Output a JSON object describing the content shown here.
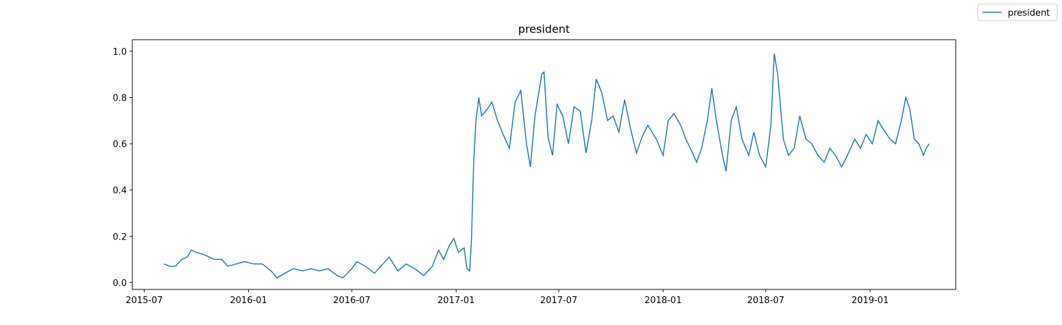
{
  "chart_data": {
    "type": "line",
    "title": "president",
    "xlabel": "",
    "ylabel": "",
    "x_tick_labels": [
      "2015-07",
      "2016-01",
      "2016-07",
      "2017-01",
      "2017-07",
      "2018-01",
      "2018-07",
      "2019-01"
    ],
    "y_tick_labels": [
      "0.0",
      "0.2",
      "0.4",
      "0.6",
      "0.8",
      "1.0"
    ],
    "xlim": [
      "2015-06-10",
      "2019-06-01"
    ],
    "ylim": [
      -0.03,
      1.05
    ],
    "grid": false,
    "legend": {
      "position": "top-right",
      "entries": [
        "president"
      ]
    },
    "series": [
      {
        "name": "president",
        "color": "#1f77b4",
        "points": [
          [
            "2015-08-05",
            0.08
          ],
          [
            "2015-08-15",
            0.07
          ],
          [
            "2015-08-25",
            0.07
          ],
          [
            "2015-09-05",
            0.1
          ],
          [
            "2015-09-15",
            0.11
          ],
          [
            "2015-09-22",
            0.14
          ],
          [
            "2015-10-01",
            0.13
          ],
          [
            "2015-10-15",
            0.12
          ],
          [
            "2015-11-01",
            0.1
          ],
          [
            "2015-11-15",
            0.1
          ],
          [
            "2015-11-25",
            0.07
          ],
          [
            "2015-12-10",
            0.08
          ],
          [
            "2015-12-25",
            0.09
          ],
          [
            "2016-01-10",
            0.08
          ],
          [
            "2016-01-25",
            0.08
          ],
          [
            "2016-02-10",
            0.05
          ],
          [
            "2016-02-20",
            0.02
          ],
          [
            "2016-03-05",
            0.04
          ],
          [
            "2016-03-20",
            0.06
          ],
          [
            "2016-04-05",
            0.05
          ],
          [
            "2016-04-20",
            0.06
          ],
          [
            "2016-05-05",
            0.05
          ],
          [
            "2016-05-20",
            0.06
          ],
          [
            "2016-06-05",
            0.03
          ],
          [
            "2016-06-15",
            0.02
          ],
          [
            "2016-07-01",
            0.06
          ],
          [
            "2016-07-10",
            0.09
          ],
          [
            "2016-07-25",
            0.07
          ],
          [
            "2016-08-10",
            0.04
          ],
          [
            "2016-08-25",
            0.08
          ],
          [
            "2016-09-05",
            0.11
          ],
          [
            "2016-09-20",
            0.05
          ],
          [
            "2016-10-05",
            0.08
          ],
          [
            "2016-10-20",
            0.06
          ],
          [
            "2016-11-05",
            0.03
          ],
          [
            "2016-11-20",
            0.07
          ],
          [
            "2016-12-01",
            0.14
          ],
          [
            "2016-12-10",
            0.1
          ],
          [
            "2016-12-20",
            0.16
          ],
          [
            "2016-12-28",
            0.19
          ],
          [
            "2017-01-05",
            0.13
          ],
          [
            "2017-01-15",
            0.15
          ],
          [
            "2017-01-20",
            0.06
          ],
          [
            "2017-01-25",
            0.05
          ],
          [
            "2017-01-28",
            0.18
          ],
          [
            "2017-02-01",
            0.52
          ],
          [
            "2017-02-05",
            0.7
          ],
          [
            "2017-02-10",
            0.8
          ],
          [
            "2017-02-15",
            0.72
          ],
          [
            "2017-02-25",
            0.75
          ],
          [
            "2017-03-05",
            0.78
          ],
          [
            "2017-03-15",
            0.7
          ],
          [
            "2017-03-25",
            0.64
          ],
          [
            "2017-04-05",
            0.58
          ],
          [
            "2017-04-15",
            0.78
          ],
          [
            "2017-04-25",
            0.83
          ],
          [
            "2017-05-05",
            0.6
          ],
          [
            "2017-05-12",
            0.5
          ],
          [
            "2017-05-20",
            0.72
          ],
          [
            "2017-06-01",
            0.9
          ],
          [
            "2017-06-05",
            0.91
          ],
          [
            "2017-06-12",
            0.63
          ],
          [
            "2017-06-20",
            0.55
          ],
          [
            "2017-06-28",
            0.77
          ],
          [
            "2017-07-08",
            0.72
          ],
          [
            "2017-07-18",
            0.6
          ],
          [
            "2017-07-28",
            0.76
          ],
          [
            "2017-08-08",
            0.74
          ],
          [
            "2017-08-18",
            0.56
          ],
          [
            "2017-08-28",
            0.7
          ],
          [
            "2017-09-05",
            0.88
          ],
          [
            "2017-09-15",
            0.82
          ],
          [
            "2017-09-25",
            0.7
          ],
          [
            "2017-10-05",
            0.72
          ],
          [
            "2017-10-15",
            0.65
          ],
          [
            "2017-10-25",
            0.79
          ],
          [
            "2017-11-05",
            0.66
          ],
          [
            "2017-11-15",
            0.56
          ],
          [
            "2017-11-25",
            0.63
          ],
          [
            "2017-12-05",
            0.68
          ],
          [
            "2017-12-20",
            0.62
          ],
          [
            "2018-01-01",
            0.55
          ],
          [
            "2018-01-10",
            0.7
          ],
          [
            "2018-01-20",
            0.73
          ],
          [
            "2018-02-01",
            0.68
          ],
          [
            "2018-02-10",
            0.62
          ],
          [
            "2018-02-20",
            0.57
          ],
          [
            "2018-03-01",
            0.52
          ],
          [
            "2018-03-10",
            0.58
          ],
          [
            "2018-03-20",
            0.7
          ],
          [
            "2018-03-28",
            0.84
          ],
          [
            "2018-04-05",
            0.7
          ],
          [
            "2018-04-15",
            0.56
          ],
          [
            "2018-04-22",
            0.48
          ],
          [
            "2018-05-01",
            0.7
          ],
          [
            "2018-05-10",
            0.76
          ],
          [
            "2018-05-20",
            0.62
          ],
          [
            "2018-06-01",
            0.55
          ],
          [
            "2018-06-10",
            0.65
          ],
          [
            "2018-06-20",
            0.55
          ],
          [
            "2018-07-01",
            0.5
          ],
          [
            "2018-07-10",
            0.68
          ],
          [
            "2018-07-16",
            0.99
          ],
          [
            "2018-07-22",
            0.9
          ],
          [
            "2018-08-01",
            0.62
          ],
          [
            "2018-08-10",
            0.55
          ],
          [
            "2018-08-20",
            0.58
          ],
          [
            "2018-08-30",
            0.72
          ],
          [
            "2018-09-10",
            0.62
          ],
          [
            "2018-09-20",
            0.6
          ],
          [
            "2018-10-01",
            0.55
          ],
          [
            "2018-10-12",
            0.52
          ],
          [
            "2018-10-22",
            0.58
          ],
          [
            "2018-11-01",
            0.55
          ],
          [
            "2018-11-12",
            0.5
          ],
          [
            "2018-11-22",
            0.55
          ],
          [
            "2018-12-05",
            0.62
          ],
          [
            "2018-12-15",
            0.58
          ],
          [
            "2018-12-25",
            0.64
          ],
          [
            "2019-01-05",
            0.6
          ],
          [
            "2019-01-15",
            0.7
          ],
          [
            "2019-01-25",
            0.66
          ],
          [
            "2019-02-05",
            0.62
          ],
          [
            "2019-02-15",
            0.6
          ],
          [
            "2019-02-25",
            0.7
          ],
          [
            "2019-03-05",
            0.8
          ],
          [
            "2019-03-12",
            0.75
          ],
          [
            "2019-03-20",
            0.62
          ],
          [
            "2019-03-28",
            0.6
          ],
          [
            "2019-04-05",
            0.55
          ],
          [
            "2019-04-10",
            0.58
          ],
          [
            "2019-04-15",
            0.6
          ]
        ]
      }
    ]
  }
}
